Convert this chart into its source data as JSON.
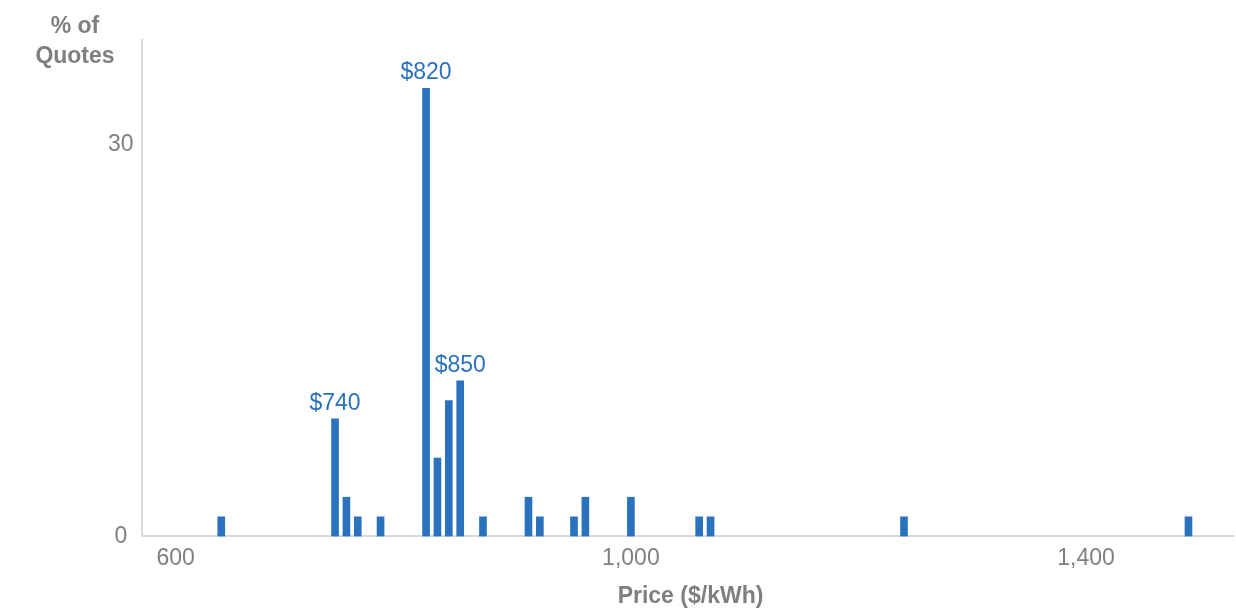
{
  "chart_data": {
    "type": "bar",
    "xlabel": "Price ($/kWh)",
    "ylabel": "% of Quotes",
    "x": [
      640,
      740,
      750,
      760,
      780,
      820,
      830,
      840,
      850,
      870,
      910,
      920,
      950,
      960,
      1000,
      1060,
      1070,
      1240,
      1490
    ],
    "values": [
      1.5,
      9,
      3,
      1.5,
      1.5,
      34.3,
      6,
      10.4,
      11.9,
      1.5,
      3,
      1.5,
      1.5,
      3,
      3,
      1.5,
      1.5,
      1.5,
      1.5
    ],
    "color": "#2b72be",
    "xlim": [
      570,
      1530
    ],
    "xticks": [
      600,
      {
        "value": 1000,
        "label": "1,000"
      },
      {
        "value": 1400,
        "label": "1,400"
      }
    ],
    "ylim": [
      0,
      38
    ],
    "yticks": [
      0,
      30
    ],
    "grid": false,
    "legend": false,
    "annotations": [
      {
        "text": "$820",
        "x": 820,
        "y": 34.3
      },
      {
        "text": "$740",
        "x": 740,
        "y": 9
      },
      {
        "text": "$850",
        "x": 850,
        "y": 11.9
      }
    ]
  }
}
